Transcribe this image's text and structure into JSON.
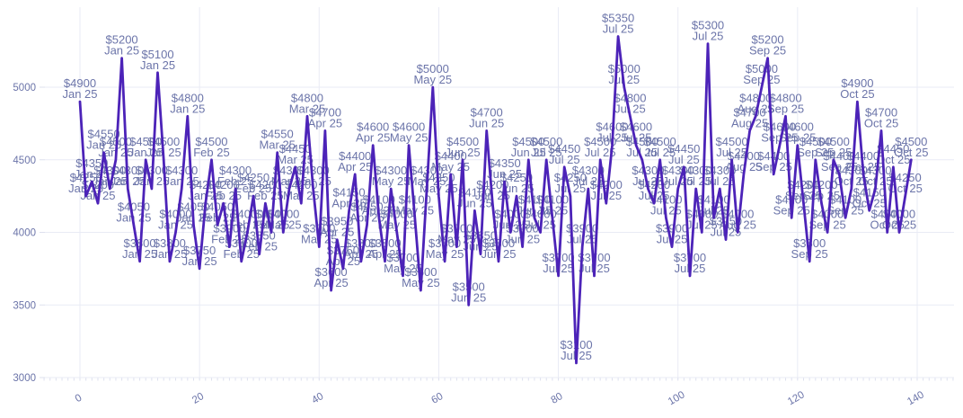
{
  "chart_data": {
    "type": "line",
    "title": "",
    "xlabel": "",
    "ylabel": "",
    "x_ticks": [
      0,
      20,
      40,
      60,
      80,
      100,
      120,
      140
    ],
    "y_ticks": [
      3000,
      3500,
      4000,
      4500,
      5000
    ],
    "x_range": [
      -6,
      146
    ],
    "y_range": [
      2850,
      5600
    ],
    "grid": true,
    "legend": false,
    "point_label_format": "$VALUE newline MONTH",
    "colors": {
      "line": "#4c23b8",
      "point_label": "#6b74a9",
      "tick_label": "#6b74a9",
      "grid": "#e9ebf5",
      "minor_tick": "#dde0ee",
      "background": "#ffffff"
    },
    "segments": [
      {
        "month": "Jan 25",
        "values": [
          4900,
          4250,
          4350,
          4200,
          4550,
          4300,
          4500,
          5200,
          4300,
          4050,
          3800,
          4500,
          4300,
          5100,
          4500,
          3800,
          4000,
          4300,
          4800,
          4050,
          3750,
          4200
        ]
      },
      {
        "month": "Feb 25",
        "values": [
          4500,
          4050,
          4200,
          3900,
          4300,
          3800,
          4000,
          4250,
          3850,
          4200,
          4000
        ]
      },
      {
        "month": "Mar 25",
        "values": [
          4550,
          4000,
          4300,
          4450,
          4200,
          4800,
          4300,
          3900
        ]
      },
      {
        "month": "Apr 25",
        "values": [
          4700,
          3600,
          3950,
          3750,
          4150,
          4400,
          3800,
          4050,
          4600,
          4100,
          3800
        ]
      },
      {
        "month": "May 25",
        "values": [
          4300,
          4000,
          3700,
          4600,
          4100,
          3600,
          4300,
          5000,
          4250,
          3800,
          4400,
          3900
        ]
      },
      {
        "month": "Jun 25",
        "values": [
          4500,
          3500,
          4150,
          3850,
          4700,
          4200,
          3800,
          4350,
          4000,
          4250,
          3900,
          4500,
          4100
        ]
      },
      {
        "month": "Jul 25",
        "values": [
          4000,
          4500,
          4100,
          3700,
          4450,
          4250,
          3100,
          3900,
          4300,
          3700,
          4500,
          4200,
          4600,
          5350,
          5000,
          4800,
          4600,
          4500,
          4300,
          4200,
          4500,
          4100,
          3900,
          4300,
          4450,
          3700,
          4300,
          4000,
          5300,
          4100,
          4300,
          3950,
          4500
        ]
      },
      {
        "month": "Aug 25",
        "values": [
          4000,
          4400,
          4700,
          4800
        ]
      },
      {
        "month": "Sep 25",
        "values": [
          5000,
          5200,
          4400,
          4600,
          4800,
          4100,
          4600,
          4200,
          3800,
          4500,
          4200,
          4000,
          4500,
          4400,
          4100
        ]
      },
      {
        "month": "Oct 25",
        "values": [
          4300,
          4900,
          4400,
          4150,
          4300,
          4700,
          4000,
          4450,
          4000,
          4250,
          4500
        ]
      }
    ]
  }
}
